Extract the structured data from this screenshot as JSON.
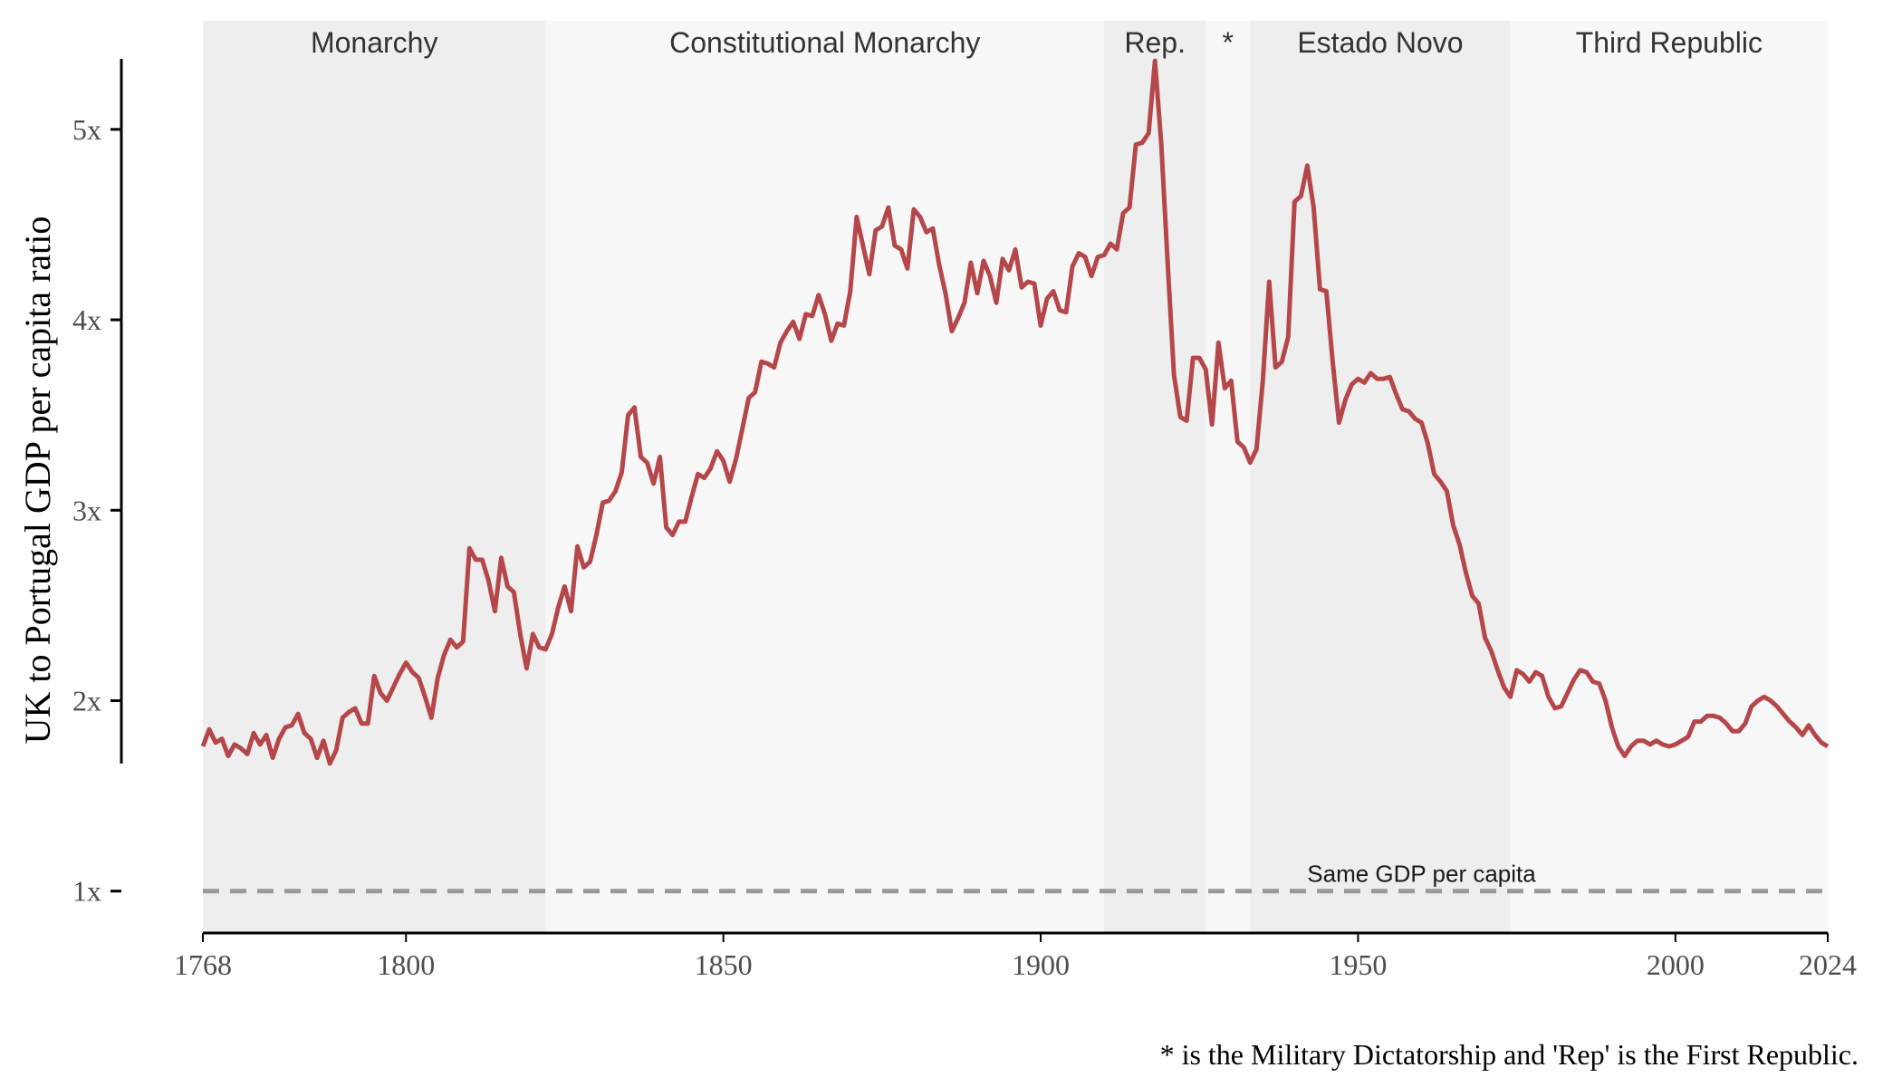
{
  "chart_data": {
    "type": "line",
    "title": "",
    "ylabel": "UK to Portugal GDP per capita ratio",
    "xlabel": "",
    "xlim": [
      1768,
      2024
    ],
    "ylim": [
      0.78,
      5.57
    ],
    "x_ticks": [
      1768,
      1800,
      1850,
      1900,
      1950,
      2000,
      2024
    ],
    "y_ticks": [
      {
        "value": 1,
        "label": "1x"
      },
      {
        "value": 2,
        "label": "2x"
      },
      {
        "value": 3,
        "label": "3x"
      },
      {
        "value": 4,
        "label": "4x"
      },
      {
        "value": 5,
        "label": "5x"
      }
    ],
    "grid": false,
    "line_color": "#B5474B",
    "periods": [
      {
        "label": "Monarchy",
        "start": 1768,
        "end": 1822,
        "shade": "#eeeeee"
      },
      {
        "label": "Constitutional Monarchy",
        "start": 1822,
        "end": 1910,
        "shade": "#f7f7f7"
      },
      {
        "label": "Rep.",
        "start": 1910,
        "end": 1926,
        "shade": "#eeeeee"
      },
      {
        "label": "*",
        "start": 1926,
        "end": 1933,
        "shade": "#f7f7f7"
      },
      {
        "label": "Estado Novo",
        "start": 1933,
        "end": 1974,
        "shade": "#eeeeee"
      },
      {
        "label": "Third Republic",
        "start": 1974,
        "end": 2024,
        "shade": "#f7f7f7"
      }
    ],
    "reference_line": {
      "value": 1,
      "label": "Same GDP per capita",
      "label_x": 1960,
      "color": "#999999"
    },
    "caption": "* is the Military Dictatorship and 'Rep' is the First Republic.",
    "series": [
      {
        "points": [
          [
            1768,
            1.76
          ],
          [
            1769,
            1.85
          ],
          [
            1770,
            1.78
          ],
          [
            1771,
            1.8
          ],
          [
            1772,
            1.71
          ],
          [
            1773,
            1.77
          ],
          [
            1774,
            1.75
          ],
          [
            1775,
            1.72
          ],
          [
            1776,
            1.83
          ],
          [
            1777,
            1.77
          ],
          [
            1778,
            1.82
          ],
          [
            1779,
            1.7
          ],
          [
            1780,
            1.8
          ],
          [
            1781,
            1.86
          ],
          [
            1782,
            1.87
          ],
          [
            1783,
            1.93
          ],
          [
            1784,
            1.83
          ],
          [
            1785,
            1.8
          ],
          [
            1786,
            1.7
          ],
          [
            1787,
            1.79
          ],
          [
            1788,
            1.67
          ],
          [
            1789,
            1.74
          ],
          [
            1790,
            1.91
          ],
          [
            1791,
            1.94
          ],
          [
            1792,
            1.96
          ],
          [
            1793,
            1.88
          ],
          [
            1794,
            1.88
          ],
          [
            1795,
            2.13
          ],
          [
            1796,
            2.04
          ],
          [
            1797,
            2.0
          ],
          [
            1798,
            2.07
          ],
          [
            1799,
            2.14
          ],
          [
            1800,
            2.2
          ],
          [
            1801,
            2.15
          ],
          [
            1802,
            2.12
          ],
          [
            1803,
            2.02
          ],
          [
            1804,
            1.91
          ],
          [
            1805,
            2.12
          ],
          [
            1806,
            2.24
          ],
          [
            1807,
            2.32
          ],
          [
            1808,
            2.28
          ],
          [
            1809,
            2.31
          ],
          [
            1810,
            2.8
          ],
          [
            1811,
            2.74
          ],
          [
            1812,
            2.74
          ],
          [
            1813,
            2.63
          ],
          [
            1814,
            2.47
          ],
          [
            1815,
            2.75
          ],
          [
            1816,
            2.6
          ],
          [
            1817,
            2.57
          ],
          [
            1818,
            2.35
          ],
          [
            1819,
            2.17
          ],
          [
            1820,
            2.35
          ],
          [
            1821,
            2.28
          ],
          [
            1822,
            2.27
          ],
          [
            1823,
            2.35
          ],
          [
            1824,
            2.49
          ],
          [
            1825,
            2.6
          ],
          [
            1826,
            2.47
          ],
          [
            1827,
            2.81
          ],
          [
            1828,
            2.7
          ],
          [
            1829,
            2.73
          ],
          [
            1830,
            2.87
          ],
          [
            1831,
            3.04
          ],
          [
            1832,
            3.05
          ],
          [
            1833,
            3.1
          ],
          [
            1834,
            3.2
          ],
          [
            1835,
            3.5
          ],
          [
            1836,
            3.54
          ],
          [
            1837,
            3.28
          ],
          [
            1838,
            3.25
          ],
          [
            1839,
            3.14
          ],
          [
            1840,
            3.28
          ],
          [
            1841,
            2.91
          ],
          [
            1842,
            2.87
          ],
          [
            1843,
            2.94
          ],
          [
            1844,
            2.94
          ],
          [
            1845,
            3.07
          ],
          [
            1846,
            3.19
          ],
          [
            1847,
            3.17
          ],
          [
            1848,
            3.22
          ],
          [
            1849,
            3.31
          ],
          [
            1850,
            3.26
          ],
          [
            1851,
            3.15
          ],
          [
            1852,
            3.27
          ],
          [
            1853,
            3.43
          ],
          [
            1854,
            3.59
          ],
          [
            1855,
            3.62
          ],
          [
            1856,
            3.78
          ],
          [
            1857,
            3.77
          ],
          [
            1858,
            3.75
          ],
          [
            1859,
            3.88
          ],
          [
            1860,
            3.94
          ],
          [
            1861,
            3.99
          ],
          [
            1862,
            3.9
          ],
          [
            1863,
            4.03
          ],
          [
            1864,
            4.02
          ],
          [
            1865,
            4.13
          ],
          [
            1866,
            4.03
          ],
          [
            1867,
            3.89
          ],
          [
            1868,
            3.98
          ],
          [
            1869,
            3.97
          ],
          [
            1870,
            4.15
          ],
          [
            1871,
            4.54
          ],
          [
            1872,
            4.39
          ],
          [
            1873,
            4.24
          ],
          [
            1874,
            4.47
          ],
          [
            1875,
            4.49
          ],
          [
            1876,
            4.59
          ],
          [
            1877,
            4.39
          ],
          [
            1878,
            4.37
          ],
          [
            1879,
            4.27
          ],
          [
            1880,
            4.58
          ],
          [
            1881,
            4.54
          ],
          [
            1882,
            4.46
          ],
          [
            1883,
            4.48
          ],
          [
            1884,
            4.29
          ],
          [
            1885,
            4.14
          ],
          [
            1886,
            3.94
          ],
          [
            1887,
            4.01
          ],
          [
            1888,
            4.09
          ],
          [
            1889,
            4.3
          ],
          [
            1890,
            4.14
          ],
          [
            1891,
            4.31
          ],
          [
            1892,
            4.23
          ],
          [
            1893,
            4.09
          ],
          [
            1894,
            4.32
          ],
          [
            1895,
            4.26
          ],
          [
            1896,
            4.37
          ],
          [
            1897,
            4.17
          ],
          [
            1898,
            4.2
          ],
          [
            1899,
            4.19
          ],
          [
            1900,
            3.97
          ],
          [
            1901,
            4.11
          ],
          [
            1902,
            4.15
          ],
          [
            1903,
            4.05
          ],
          [
            1904,
            4.04
          ],
          [
            1905,
            4.28
          ],
          [
            1906,
            4.35
          ],
          [
            1907,
            4.33
          ],
          [
            1908,
            4.23
          ],
          [
            1909,
            4.33
          ],
          [
            1910,
            4.34
          ],
          [
            1911,
            4.4
          ],
          [
            1912,
            4.37
          ],
          [
            1913,
            4.56
          ],
          [
            1914,
            4.59
          ],
          [
            1915,
            4.92
          ],
          [
            1916,
            4.93
          ],
          [
            1917,
            4.98
          ],
          [
            1918,
            5.36
          ],
          [
            1919,
            4.92
          ],
          [
            1920,
            4.3
          ],
          [
            1921,
            3.71
          ],
          [
            1922,
            3.49
          ],
          [
            1923,
            3.47
          ],
          [
            1924,
            3.8
          ],
          [
            1925,
            3.8
          ],
          [
            1926,
            3.74
          ],
          [
            1927,
            3.45
          ],
          [
            1928,
            3.88
          ],
          [
            1929,
            3.64
          ],
          [
            1930,
            3.68
          ],
          [
            1931,
            3.36
          ],
          [
            1932,
            3.33
          ],
          [
            1933,
            3.25
          ],
          [
            1934,
            3.32
          ],
          [
            1935,
            3.68
          ],
          [
            1936,
            4.2
          ],
          [
            1937,
            3.75
          ],
          [
            1938,
            3.78
          ],
          [
            1939,
            3.91
          ],
          [
            1940,
            4.62
          ],
          [
            1941,
            4.65
          ],
          [
            1942,
            4.81
          ],
          [
            1943,
            4.59
          ],
          [
            1944,
            4.16
          ],
          [
            1945,
            4.15
          ],
          [
            1946,
            3.78
          ],
          [
            1947,
            3.46
          ],
          [
            1948,
            3.58
          ],
          [
            1949,
            3.66
          ],
          [
            1950,
            3.69
          ],
          [
            1951,
            3.67
          ],
          [
            1952,
            3.72
          ],
          [
            1953,
            3.69
          ],
          [
            1954,
            3.69
          ],
          [
            1955,
            3.7
          ],
          [
            1956,
            3.61
          ],
          [
            1957,
            3.53
          ],
          [
            1958,
            3.52
          ],
          [
            1959,
            3.48
          ],
          [
            1960,
            3.46
          ],
          [
            1961,
            3.35
          ],
          [
            1962,
            3.19
          ],
          [
            1963,
            3.15
          ],
          [
            1964,
            3.1
          ],
          [
            1965,
            2.92
          ],
          [
            1966,
            2.82
          ],
          [
            1967,
            2.67
          ],
          [
            1968,
            2.55
          ],
          [
            1969,
            2.51
          ],
          [
            1970,
            2.33
          ],
          [
            1971,
            2.26
          ],
          [
            1972,
            2.16
          ],
          [
            1973,
            2.07
          ],
          [
            1974,
            2.02
          ],
          [
            1975,
            2.16
          ],
          [
            1976,
            2.14
          ],
          [
            1977,
            2.1
          ],
          [
            1978,
            2.15
          ],
          [
            1979,
            2.13
          ],
          [
            1980,
            2.02
          ],
          [
            1981,
            1.96
          ],
          [
            1982,
            1.97
          ],
          [
            1983,
            2.04
          ],
          [
            1984,
            2.11
          ],
          [
            1985,
            2.16
          ],
          [
            1986,
            2.15
          ],
          [
            1987,
            2.1
          ],
          [
            1988,
            2.09
          ],
          [
            1989,
            2.0
          ],
          [
            1990,
            1.86
          ],
          [
            1991,
            1.76
          ],
          [
            1992,
            1.71
          ],
          [
            1993,
            1.76
          ],
          [
            1994,
            1.79
          ],
          [
            1995,
            1.79
          ],
          [
            1996,
            1.77
          ],
          [
            1997,
            1.79
          ],
          [
            1998,
            1.77
          ],
          [
            1999,
            1.76
          ],
          [
            2000,
            1.77
          ],
          [
            2001,
            1.79
          ],
          [
            2002,
            1.81
          ],
          [
            2003,
            1.89
          ],
          [
            2004,
            1.89
          ],
          [
            2005,
            1.92
          ],
          [
            2006,
            1.92
          ],
          [
            2007,
            1.91
          ],
          [
            2008,
            1.88
          ],
          [
            2009,
            1.84
          ],
          [
            2010,
            1.84
          ],
          [
            2011,
            1.88
          ],
          [
            2012,
            1.97
          ],
          [
            2013,
            2.0
          ],
          [
            2014,
            2.02
          ],
          [
            2015,
            2.0
          ],
          [
            2016,
            1.97
          ],
          [
            2017,
            1.93
          ],
          [
            2018,
            1.89
          ],
          [
            2019,
            1.86
          ],
          [
            2020,
            1.82
          ],
          [
            2021,
            1.87
          ],
          [
            2022,
            1.82
          ],
          [
            2023,
            1.78
          ],
          [
            2024,
            1.76
          ]
        ]
      }
    ]
  }
}
